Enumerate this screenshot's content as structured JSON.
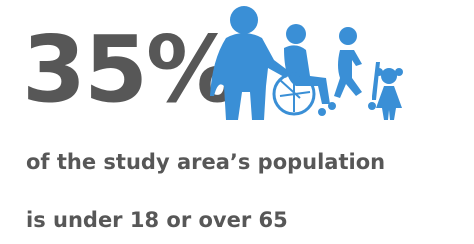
{
  "stat": "35%",
  "caption": {
    "line1": "of the study area’s population",
    "line2": "is under 18 or over 65"
  }
}
